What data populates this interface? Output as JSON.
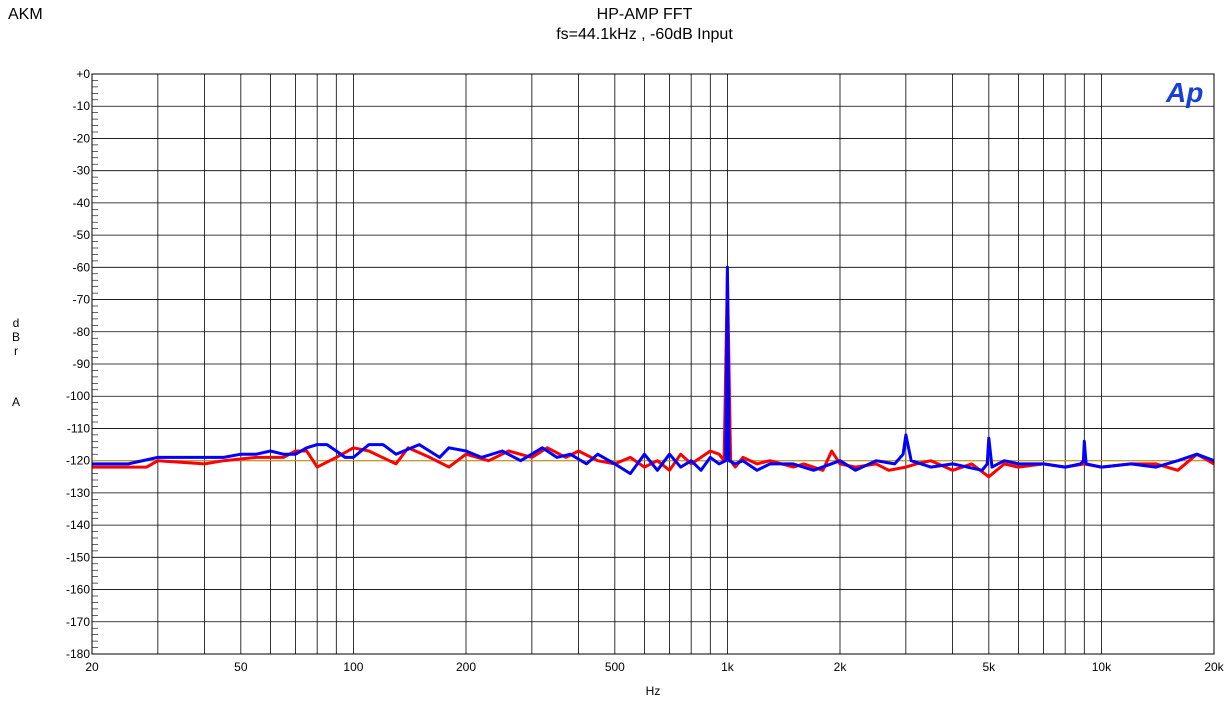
{
  "header": {
    "brand": "AKM",
    "title_line1": "HP-AMP  FFT",
    "title_line2": "fs=44.1kHz , -60dB Input"
  },
  "logo_text": "Ap",
  "chart_data": {
    "type": "line",
    "title": "HP-AMP  FFT",
    "subtitle": "fs=44.1kHz , -60dB Input",
    "xlabel": "Hz",
    "ylabel_letters": [
      "d",
      "B",
      "r",
      "",
      "A"
    ],
    "x_scale": "log",
    "xlim": [
      20,
      20000
    ],
    "ylim": [
      -180,
      0
    ],
    "grid": true,
    "x_ticks": [
      {
        "value": 20,
        "label": "20"
      },
      {
        "value": 50,
        "label": "50"
      },
      {
        "value": 100,
        "label": "100"
      },
      {
        "value": 200,
        "label": "200"
      },
      {
        "value": 500,
        "label": "500"
      },
      {
        "value": 1000,
        "label": "1k"
      },
      {
        "value": 2000,
        "label": "2k"
      },
      {
        "value": 5000,
        "label": "5k"
      },
      {
        "value": 10000,
        "label": "10k"
      },
      {
        "value": 20000,
        "label": "20k"
      }
    ],
    "y_ticks": [
      {
        "value": 0,
        "label": "+0"
      },
      {
        "value": -10,
        "label": "-10"
      },
      {
        "value": -20,
        "label": "-20"
      },
      {
        "value": -30,
        "label": "-30"
      },
      {
        "value": -40,
        "label": "-40"
      },
      {
        "value": -50,
        "label": "-50"
      },
      {
        "value": -60,
        "label": "-60"
      },
      {
        "value": -70,
        "label": "-70"
      },
      {
        "value": -80,
        "label": "-80"
      },
      {
        "value": -90,
        "label": "-90"
      },
      {
        "value": -100,
        "label": "-100"
      },
      {
        "value": -110,
        "label": "-110"
      },
      {
        "value": -120,
        "label": "-120"
      },
      {
        "value": -130,
        "label": "-130"
      },
      {
        "value": -140,
        "label": "-140"
      },
      {
        "value": -150,
        "label": "-150"
      },
      {
        "value": -160,
        "label": "-160"
      },
      {
        "value": -170,
        "label": "-170"
      },
      {
        "value": -180,
        "label": "-180"
      }
    ],
    "reference_line": {
      "y": -120,
      "color": "#d4a017"
    },
    "series": [
      {
        "color": "#ff0000",
        "x": [
          20,
          28,
          30,
          40,
          45,
          55,
          65,
          70,
          75,
          80,
          90,
          100,
          110,
          130,
          140,
          160,
          180,
          200,
          230,
          260,
          300,
          330,
          370,
          400,
          450,
          500,
          550,
          600,
          650,
          700,
          750,
          800,
          850,
          900,
          950,
          980,
          1000,
          1020,
          1050,
          1100,
          1200,
          1300,
          1500,
          1600,
          1800,
          1900,
          2000,
          2200,
          2500,
          2700,
          3000,
          3200,
          3500,
          4000,
          4500,
          5000,
          5500,
          6000,
          7000,
          8000,
          9000,
          10000,
          12000,
          14000,
          16000,
          18000,
          20000
        ],
        "y": [
          -122,
          -122,
          -120,
          -121,
          -120,
          -119,
          -119,
          -117,
          -117,
          -122,
          -119,
          -116,
          -117,
          -121,
          -116,
          -119,
          -122,
          -118,
          -120,
          -117,
          -119,
          -116,
          -119,
          -117,
          -120,
          -121,
          -119,
          -122,
          -120,
          -123,
          -118,
          -121,
          -119,
          -117,
          -118,
          -120,
          -62,
          -120,
          -122,
          -119,
          -121,
          -120,
          -122,
          -121,
          -123,
          -117,
          -121,
          -122,
          -121,
          -123,
          -122,
          -121,
          -120,
          -123,
          -121,
          -125,
          -121,
          -122,
          -121,
          -122,
          -121,
          -122,
          -121,
          -121,
          -123,
          -118,
          -121
        ]
      },
      {
        "color": "#0000ff",
        "x": [
          20,
          25,
          30,
          40,
          45,
          50,
          55,
          60,
          65,
          70,
          75,
          80,
          85,
          90,
          95,
          100,
          110,
          120,
          130,
          150,
          170,
          180,
          200,
          220,
          250,
          280,
          320,
          350,
          380,
          420,
          450,
          500,
          550,
          600,
          650,
          700,
          750,
          800,
          850,
          900,
          950,
          990,
          1000,
          1010,
          1050,
          1100,
          1200,
          1300,
          1500,
          1700,
          2000,
          2200,
          2500,
          2800,
          2950,
          3000,
          3100,
          3500,
          4000,
          4800,
          4950,
          5000,
          5100,
          5500,
          6000,
          7000,
          8000,
          8800,
          8950,
          9000,
          9100,
          10000,
          12000,
          14000,
          16000,
          18000,
          20000
        ],
        "y": [
          -121,
          -121,
          -119,
          -119,
          -119,
          -118,
          -118,
          -117,
          -118,
          -118,
          -116,
          -115,
          -115,
          -117,
          -119,
          -119,
          -115,
          -115,
          -118,
          -115,
          -119,
          -116,
          -117,
          -119,
          -117,
          -120,
          -116,
          -119,
          -118,
          -121,
          -118,
          -121,
          -124,
          -118,
          -123,
          -118,
          -122,
          -120,
          -123,
          -119,
          -121,
          -120,
          -60,
          -120,
          -121,
          -120,
          -123,
          -121,
          -121,
          -123,
          -120,
          -123,
          -120,
          -121,
          -118,
          -112,
          -120,
          -122,
          -121,
          -123,
          -121,
          -113,
          -122,
          -120,
          -121,
          -121,
          -122,
          -121,
          -120,
          -114,
          -121,
          -122,
          -121,
          -122,
          -120,
          -118,
          -120
        ]
      }
    ]
  }
}
